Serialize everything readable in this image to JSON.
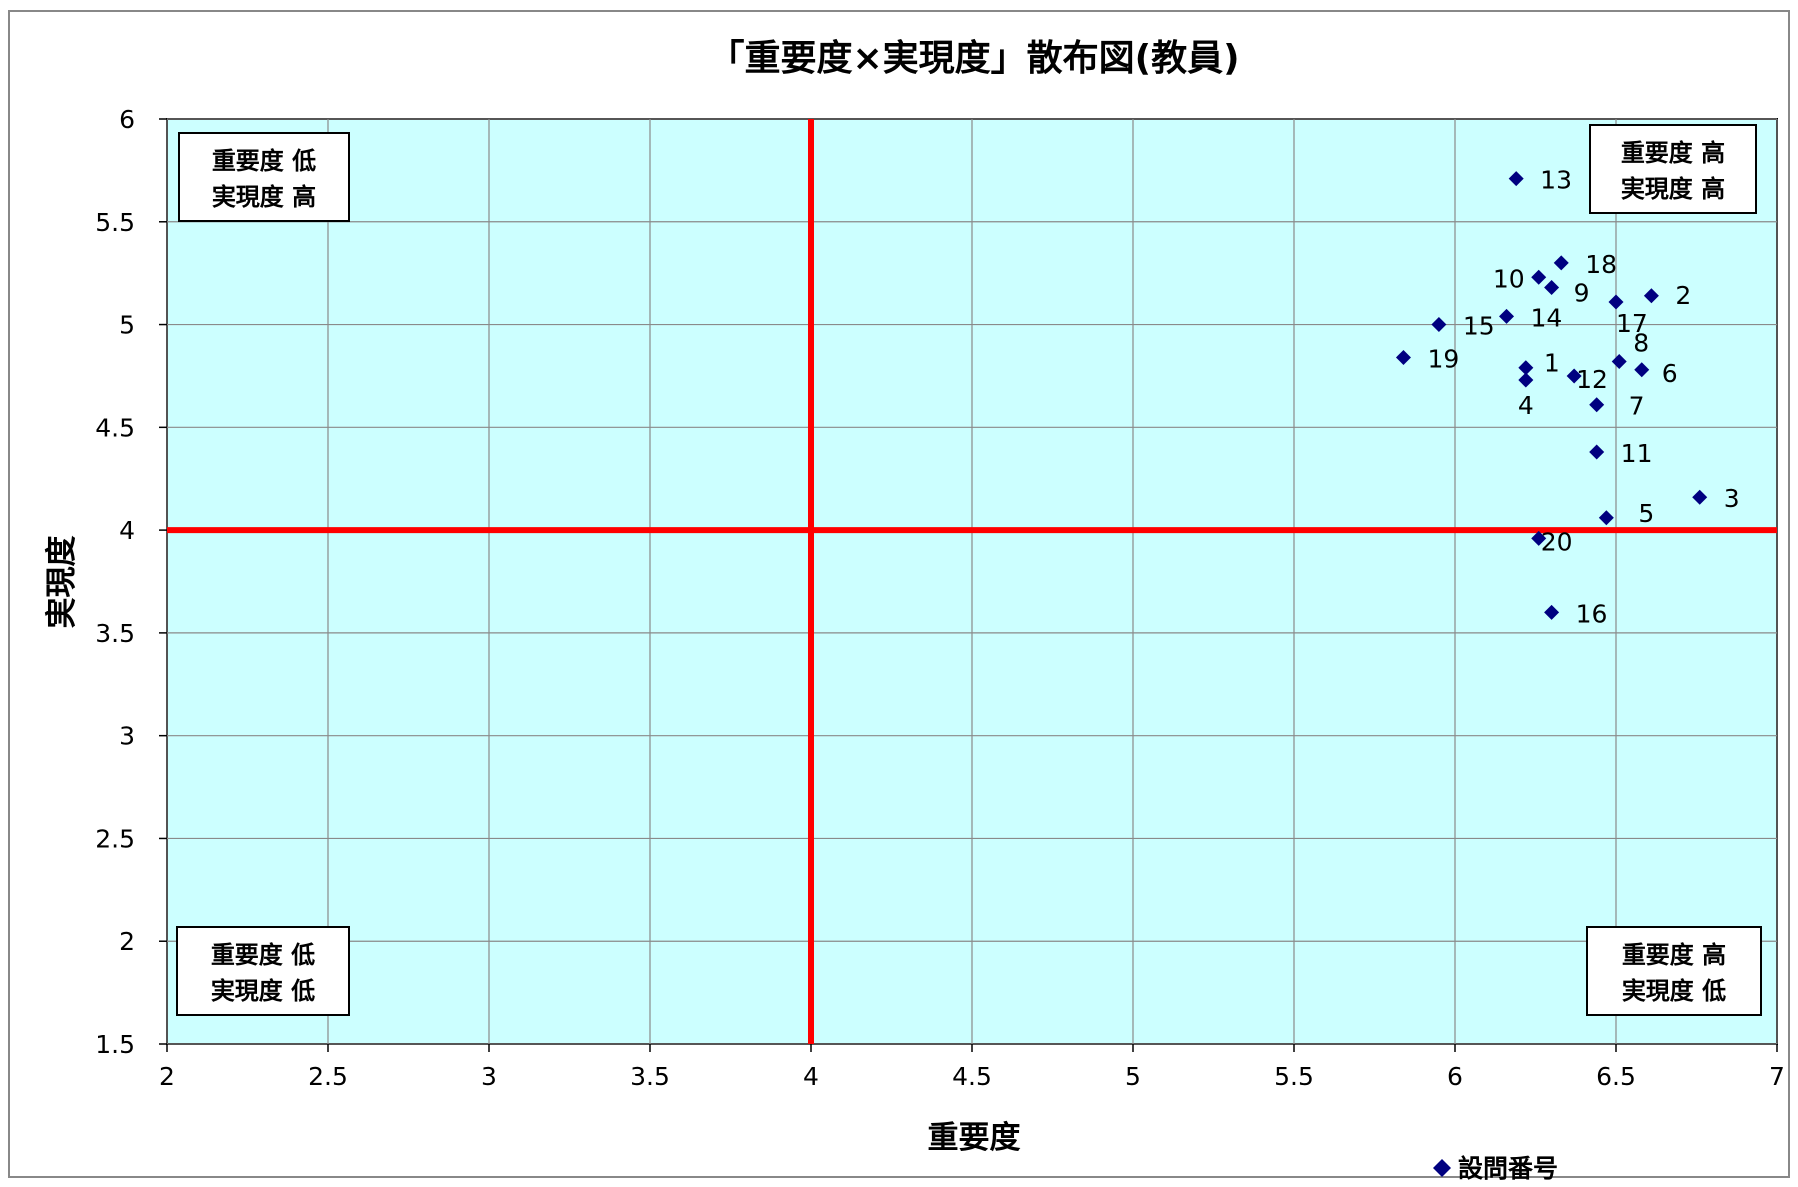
{
  "chart_data": {
    "type": "scatter",
    "title": "「重要度×実現度」散布図(教員)",
    "xlabel": "重要度",
    "ylabel": "実現度",
    "xlim": [
      2,
      7
    ],
    "ylim": [
      1.5,
      6
    ],
    "x_ticks": [
      "2",
      "2.5",
      "3",
      "3.5",
      "4",
      "4.5",
      "5",
      "5.5",
      "6",
      "6.5",
      "7"
    ],
    "y_ticks": [
      "1.5",
      "2",
      "2.5",
      "3",
      "3.5",
      "4",
      "4.5",
      "5",
      "5.5",
      "6"
    ],
    "grid": true,
    "plot_background": "#ccffff",
    "marker_color": "#000080",
    "threshold_color": "#ff0000",
    "thresholds": {
      "x": 4,
      "y": 4
    },
    "legend": {
      "position": "bottom-right",
      "label": "設問番号"
    },
    "series": [
      {
        "name": "設問番号",
        "points": [
          {
            "label": "1",
            "x": 6.22,
            "y": 4.79
          },
          {
            "label": "2",
            "x": 6.61,
            "y": 5.14
          },
          {
            "label": "3",
            "x": 6.76,
            "y": 4.16
          },
          {
            "label": "4",
            "x": 6.22,
            "y": 4.73
          },
          {
            "label": "5",
            "x": 6.47,
            "y": 4.06
          },
          {
            "label": "6",
            "x": 6.58,
            "y": 4.78
          },
          {
            "label": "7",
            "x": 6.44,
            "y": 4.61
          },
          {
            "label": "8",
            "x": 6.51,
            "y": 4.82
          },
          {
            "label": "9",
            "x": 6.3,
            "y": 5.18
          },
          {
            "label": "10",
            "x": 6.26,
            "y": 5.23
          },
          {
            "label": "11",
            "x": 6.44,
            "y": 4.38
          },
          {
            "label": "12",
            "x": 6.37,
            "y": 4.75
          },
          {
            "label": "13",
            "x": 6.19,
            "y": 5.71
          },
          {
            "label": "14",
            "x": 6.16,
            "y": 5.04
          },
          {
            "label": "15",
            "x": 5.95,
            "y": 5.0
          },
          {
            "label": "16",
            "x": 6.3,
            "y": 3.6
          },
          {
            "label": "17",
            "x": 6.5,
            "y": 5.11
          },
          {
            "label": "18",
            "x": 6.33,
            "y": 5.3
          },
          {
            "label": "19",
            "x": 5.84,
            "y": 4.84
          },
          {
            "label": "20",
            "x": 6.26,
            "y": 3.96
          }
        ]
      }
    ],
    "quadrant_labels": [
      {
        "position": "top-left",
        "line1": "重要度 低",
        "line2": "実現度 高"
      },
      {
        "position": "top-right",
        "line1": "重要度 高",
        "line2": "実現度 高"
      },
      {
        "position": "bottom-left",
        "line1": "重要度 低",
        "line2": "実現度 低"
      },
      {
        "position": "bottom-right",
        "line1": "重要度 高",
        "line2": "実現度 低"
      }
    ]
  }
}
